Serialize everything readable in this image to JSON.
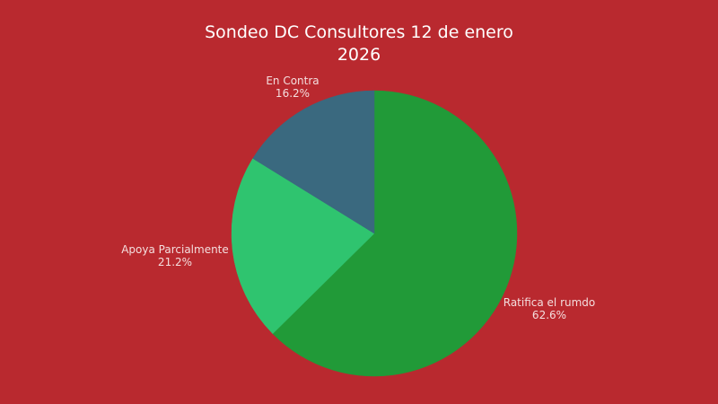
{
  "colors": {
    "background": "#b9292f",
    "text": "#ffffff"
  },
  "chart_data": {
    "type": "pie",
    "title": "Sondeo DC Consultores 12 de enero 2026",
    "title_lines": [
      "Sondeo DC Consultores 12 de enero",
      "2026"
    ],
    "categories": [
      "Ratifica el rumdo",
      "Apoya Parcialmente",
      "En Contra"
    ],
    "values": [
      62.6,
      21.2,
      16.2
    ],
    "labels_text": [
      "62.6%",
      "21.2%",
      "16.2%"
    ],
    "colors": [
      "#219a38",
      "#2fc46f",
      "#3a697f"
    ],
    "start_angle": "12 o'clock",
    "direction": "clockwise",
    "legend": "none",
    "label_position": "outside"
  }
}
